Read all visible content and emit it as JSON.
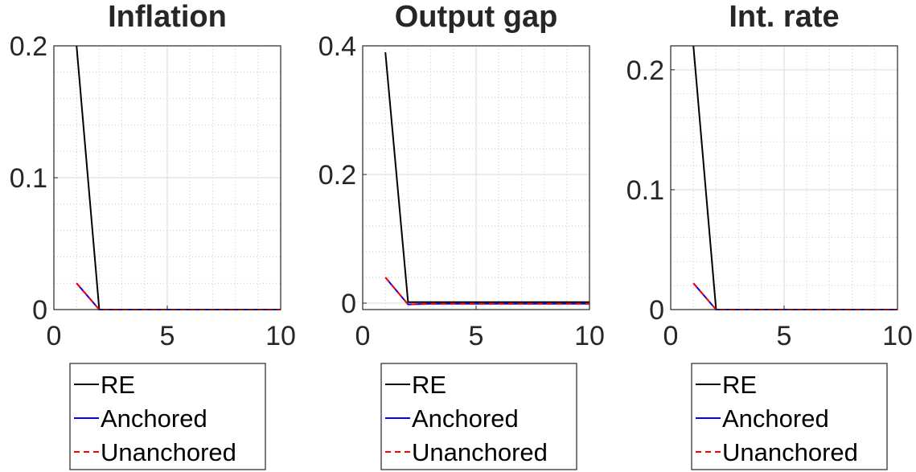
{
  "chart_data": [
    {
      "type": "line",
      "title": "Inflation",
      "xlabel": "",
      "ylabel": "",
      "xlim": [
        0,
        10
      ],
      "ylim": [
        0,
        0.2
      ],
      "xticks": [
        0,
        5,
        10
      ],
      "xtick_labels": [
        "0",
        "5",
        "10"
      ],
      "yticks": [
        0,
        0.1,
        0.2
      ],
      "ytick_labels": [
        "0",
        "0.1",
        "0.2"
      ],
      "grid": true,
      "minor_grid": true,
      "legend_position": "below",
      "series": [
        {
          "name": "RE",
          "style": "solid",
          "color": "#000000",
          "x": [
            1,
            2,
            3,
            4,
            5,
            6,
            7,
            8,
            9,
            10
          ],
          "y": [
            0.2,
            0,
            0,
            0,
            0,
            0,
            0,
            0,
            0,
            0
          ]
        },
        {
          "name": "Anchored",
          "style": "solid",
          "color": "#0000ff",
          "x": [
            1,
            2,
            3,
            4,
            5,
            6,
            7,
            8,
            9,
            10
          ],
          "y": [
            0.02,
            0,
            0,
            0,
            0,
            0,
            0,
            0,
            0,
            0
          ]
        },
        {
          "name": "Unanchored",
          "style": "dashed",
          "color": "#ff0000",
          "x": [
            1,
            2,
            3,
            4,
            5,
            6,
            7,
            8,
            9,
            10
          ],
          "y": [
            0.02,
            0,
            0,
            0,
            0,
            0,
            0,
            0,
            0,
            0
          ]
        }
      ]
    },
    {
      "type": "line",
      "title": "Output gap",
      "xlabel": "",
      "ylabel": "",
      "xlim": [
        0,
        10
      ],
      "ylim": [
        -0.01,
        0.4
      ],
      "xticks": [
        0,
        5,
        10
      ],
      "xtick_labels": [
        "0",
        "5",
        "10"
      ],
      "yticks": [
        0,
        0.2,
        0.4
      ],
      "ytick_labels": [
        "0",
        "0.2",
        "0.4"
      ],
      "grid": true,
      "minor_grid": true,
      "legend_position": "below",
      "series": [
        {
          "name": "RE",
          "style": "solid",
          "color": "#000000",
          "x": [
            1,
            2,
            3,
            4,
            5,
            6,
            7,
            8,
            9,
            10
          ],
          "y": [
            0.39,
            0.0015,
            0.0015,
            0.0015,
            0.0015,
            0.0015,
            0.0015,
            0.0015,
            0.0015,
            0.0015
          ]
        },
        {
          "name": "Anchored",
          "style": "solid",
          "color": "#0000ff",
          "x": [
            1,
            2,
            3,
            4,
            5,
            6,
            7,
            8,
            9,
            10
          ],
          "y": [
            0.04,
            -0.002,
            -0.001,
            -0.001,
            -0.001,
            -0.001,
            -0.001,
            -0.001,
            -0.001,
            -0.001
          ]
        },
        {
          "name": "Unanchored",
          "style": "dashed",
          "color": "#ff0000",
          "x": [
            1,
            2,
            3,
            4,
            5,
            6,
            7,
            8,
            9,
            10
          ],
          "y": [
            0.04,
            -0.002,
            -0.001,
            -0.001,
            -0.001,
            -0.001,
            -0.001,
            -0.001,
            -0.001,
            -0.001
          ]
        }
      ]
    },
    {
      "type": "line",
      "title": "Int. rate",
      "xlabel": "",
      "ylabel": "",
      "xlim": [
        0,
        10
      ],
      "ylim": [
        0,
        0.22
      ],
      "xticks": [
        0,
        5,
        10
      ],
      "xtick_labels": [
        "0",
        "5",
        "10"
      ],
      "yticks": [
        0,
        0.1,
        0.2
      ],
      "ytick_labels": [
        "0",
        "0.1",
        "0.2"
      ],
      "grid": true,
      "minor_grid": true,
      "legend_position": "below",
      "series": [
        {
          "name": "RE",
          "style": "solid",
          "color": "#000000",
          "x": [
            1,
            2,
            3,
            4,
            5,
            6,
            7,
            8,
            9,
            10
          ],
          "y": [
            0.22,
            0,
            0,
            0,
            0,
            0,
            0,
            0,
            0,
            0
          ]
        },
        {
          "name": "Anchored",
          "style": "solid",
          "color": "#0000ff",
          "x": [
            1,
            2,
            3,
            4,
            5,
            6,
            7,
            8,
            9,
            10
          ],
          "y": [
            0.022,
            0,
            0,
            0,
            0,
            0,
            0,
            0,
            0,
            0
          ]
        },
        {
          "name": "Unanchored",
          "style": "dashed",
          "color": "#ff0000",
          "x": [
            1,
            2,
            3,
            4,
            5,
            6,
            7,
            8,
            9,
            10
          ],
          "y": [
            0.022,
            0,
            0,
            0,
            0,
            0,
            0,
            0,
            0,
            0
          ]
        }
      ]
    }
  ]
}
